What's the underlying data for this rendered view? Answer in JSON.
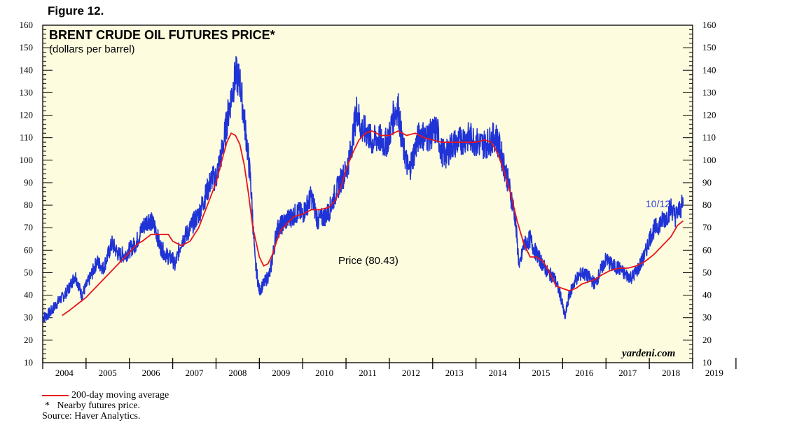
{
  "figure_label": "Figure 12.",
  "watermark": "yardeni.com",
  "price_annotation": "Price (80.43)",
  "last_date_label": "10/12",
  "colors": {
    "background": "#ffffff",
    "plot_background": "#fdfcdf",
    "price_line": "#1f33d6",
    "moving_average": "#e8141c",
    "annotation": "#2a3fd1"
  },
  "legend": {
    "moving_average_label": "200-day moving average"
  },
  "footnotes": {
    "note": "Nearby futures price.",
    "note_marker": "*",
    "source": "Source: Haver Analytics."
  },
  "chart_data": {
    "type": "line",
    "title": "BRENT CRUDE OIL FUTURES PRICE*",
    "subtitle": "(dollars per barrel)",
    "xlabel": "",
    "ylabel": "",
    "ylim": [
      10,
      160
    ],
    "xlim": [
      2004.0,
      2019.0
    ],
    "yticks": [
      10,
      20,
      30,
      40,
      50,
      60,
      70,
      80,
      90,
      100,
      110,
      120,
      130,
      140,
      150,
      160
    ],
    "year_labels": [
      "2004",
      "2005",
      "2006",
      "2007",
      "2008",
      "2009",
      "2010",
      "2011",
      "2012",
      "2013",
      "2014",
      "2015",
      "2016",
      "2017",
      "2018",
      "2019"
    ],
    "grid": false,
    "legend_position": "bottom-left",
    "series": [
      {
        "name": "Price",
        "x": [
          2004.0,
          2004.1,
          2004.2,
          2004.35,
          2004.5,
          2004.6,
          2004.75,
          2004.9,
          2005.0,
          2005.1,
          2005.25,
          2005.4,
          2005.6,
          2005.75,
          2005.9,
          2006.0,
          2006.15,
          2006.3,
          2006.45,
          2006.6,
          2006.7,
          2006.8,
          2006.9,
          2007.0,
          2007.05,
          2007.2,
          2007.35,
          2007.5,
          2007.6,
          2007.75,
          2007.9,
          2008.0,
          2008.15,
          2008.3,
          2008.45,
          2008.55,
          2008.7,
          2008.8,
          2008.9,
          2009.0,
          2009.1,
          2009.25,
          2009.4,
          2009.5,
          2009.6,
          2009.75,
          2009.9,
          2010.0,
          2010.2,
          2010.35,
          2010.5,
          2010.6,
          2010.75,
          2010.9,
          2011.0,
          2011.1,
          2011.25,
          2011.35,
          2011.5,
          2011.6,
          2011.75,
          2011.9,
          2012.0,
          2012.1,
          2012.2,
          2012.3,
          2012.45,
          2012.55,
          2012.7,
          2012.85,
          2013.0,
          2013.1,
          2013.2,
          2013.3,
          2013.45,
          2013.6,
          2013.75,
          2013.9,
          2014.0,
          2014.15,
          2014.3,
          2014.45,
          2014.55,
          2014.7,
          2014.8,
          2014.9,
          2015.0,
          2015.1,
          2015.25,
          2015.35,
          2015.5,
          2015.65,
          2015.8,
          2015.95,
          2016.05,
          2016.15,
          2016.3,
          2016.45,
          2016.6,
          2016.75,
          2016.9,
          2017.0,
          2017.15,
          2017.3,
          2017.45,
          2017.6,
          2017.75,
          2017.9,
          2018.0,
          2018.1,
          2018.25,
          2018.4,
          2018.5,
          2018.6,
          2018.7,
          2018.78
        ],
        "values": [
          30,
          31,
          33,
          37,
          40,
          43,
          49,
          40,
          44,
          48,
          55,
          52,
          63,
          58,
          58,
          60,
          63,
          70,
          74,
          70,
          62,
          59,
          57,
          56,
          53,
          64,
          68,
          73,
          76,
          84,
          92,
          92,
          105,
          123,
          138,
          135,
          110,
          90,
          55,
          42,
          45,
          50,
          69,
          71,
          73,
          75,
          77,
          76,
          84,
          73,
          75,
          77,
          85,
          92,
          95,
          103,
          123,
          114,
          112,
          108,
          110,
          107,
          111,
          120,
          124,
          107,
          95,
          102,
          112,
          110,
          112,
          114,
          104,
          102,
          107,
          108,
          110,
          110,
          108,
          107,
          108,
          111,
          105,
          94,
          85,
          75,
          52,
          62,
          65,
          60,
          55,
          50,
          48,
          40,
          30,
          40,
          47,
          50,
          48,
          45,
          52,
          56,
          53,
          52,
          49,
          48,
          52,
          58,
          65,
          69,
          72,
          75,
          79,
          75,
          78,
          80.43
        ]
      },
      {
        "name": "200-day moving average",
        "x": [
          2004.45,
          2004.6,
          2004.8,
          2005.0,
          2005.2,
          2005.4,
          2005.6,
          2005.8,
          2006.0,
          2006.2,
          2006.3,
          2006.5,
          2006.7,
          2006.9,
          2007.0,
          2007.2,
          2007.4,
          2007.6,
          2007.8,
          2008.0,
          2008.15,
          2008.25,
          2008.35,
          2008.45,
          2008.55,
          2008.65,
          2008.75,
          2008.85,
          2009.0,
          2009.1,
          2009.2,
          2009.3,
          2009.4,
          2009.5,
          2009.65,
          2009.8,
          2010.0,
          2010.2,
          2010.4,
          2010.6,
          2010.75,
          2010.9,
          2011.0,
          2011.15,
          2011.3,
          2011.45,
          2011.6,
          2011.8,
          2012.0,
          2012.2,
          2012.4,
          2012.6,
          2012.8,
          2013.0,
          2013.2,
          2013.4,
          2013.6,
          2013.8,
          2014.0,
          2014.2,
          2014.35,
          2014.5,
          2014.65,
          2014.8,
          2014.95,
          2015.1,
          2015.25,
          2015.4,
          2015.55,
          2015.7,
          2015.85,
          2016.0,
          2016.15,
          2016.3,
          2016.45,
          2016.6,
          2016.75,
          2016.9,
          2017.1,
          2017.3,
          2017.5,
          2017.7,
          2017.9,
          2018.1,
          2018.3,
          2018.5,
          2018.65,
          2018.78
        ],
        "values": [
          31,
          33,
          36,
          39,
          43,
          47,
          51,
          55,
          59,
          63,
          64,
          67,
          67,
          67,
          64,
          62,
          64,
          70,
          80,
          90,
          101,
          108,
          112,
          111,
          107,
          98,
          85,
          70,
          57,
          53,
          54,
          58,
          64,
          69,
          72,
          75,
          76,
          78,
          78,
          79,
          82,
          89,
          96,
          103,
          109,
          112,
          113,
          111,
          111,
          113,
          111,
          112,
          110,
          109,
          108,
          108,
          108,
          108,
          108,
          109,
          108,
          103,
          95,
          85,
          73,
          63,
          57,
          57,
          55,
          50,
          44,
          43,
          42,
          43,
          45,
          46,
          47,
          49,
          51,
          52,
          52,
          53,
          55,
          58,
          62,
          66,
          71,
          73
        ]
      }
    ]
  }
}
